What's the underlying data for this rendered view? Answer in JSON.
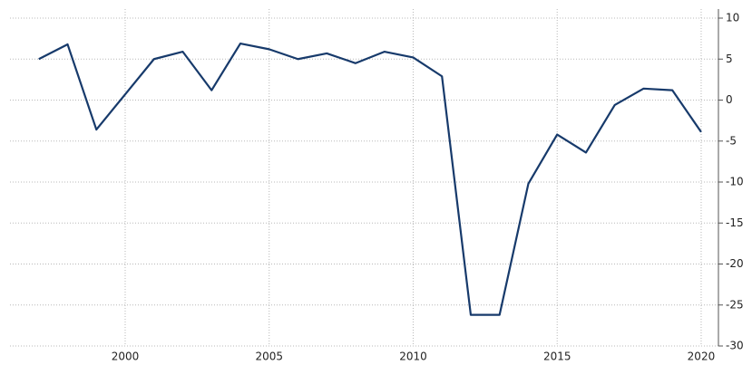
{
  "chart_data": {
    "type": "line",
    "x": [
      1997,
      1998,
      1999,
      2000,
      2001,
      2002,
      2003,
      2004,
      2005,
      2006,
      2007,
      2008,
      2009,
      2010,
      2011,
      2012,
      2013,
      2014,
      2015,
      2016,
      2017,
      2018,
      2019,
      2020
    ],
    "values": [
      5,
      6.8,
      -3.6,
      0.7,
      5,
      5.9,
      1.2,
      6.9,
      6.2,
      5,
      5.7,
      4.5,
      5.9,
      5.2,
      2.9,
      -26.2,
      -26.2,
      -10.2,
      -4.2,
      -6.4,
      -0.6,
      1.4,
      1.2,
      -3.9
    ],
    "color": "#173a6b",
    "xlim": [
      1996,
      2020.6
    ],
    "xticks": [
      2000,
      2005,
      2010,
      2015,
      2020
    ],
    "ylim": [
      -30,
      10
    ],
    "yticks": [
      10,
      5,
      0,
      -5,
      -10,
      -15,
      -20,
      -25,
      -30
    ],
    "grid": true
  }
}
